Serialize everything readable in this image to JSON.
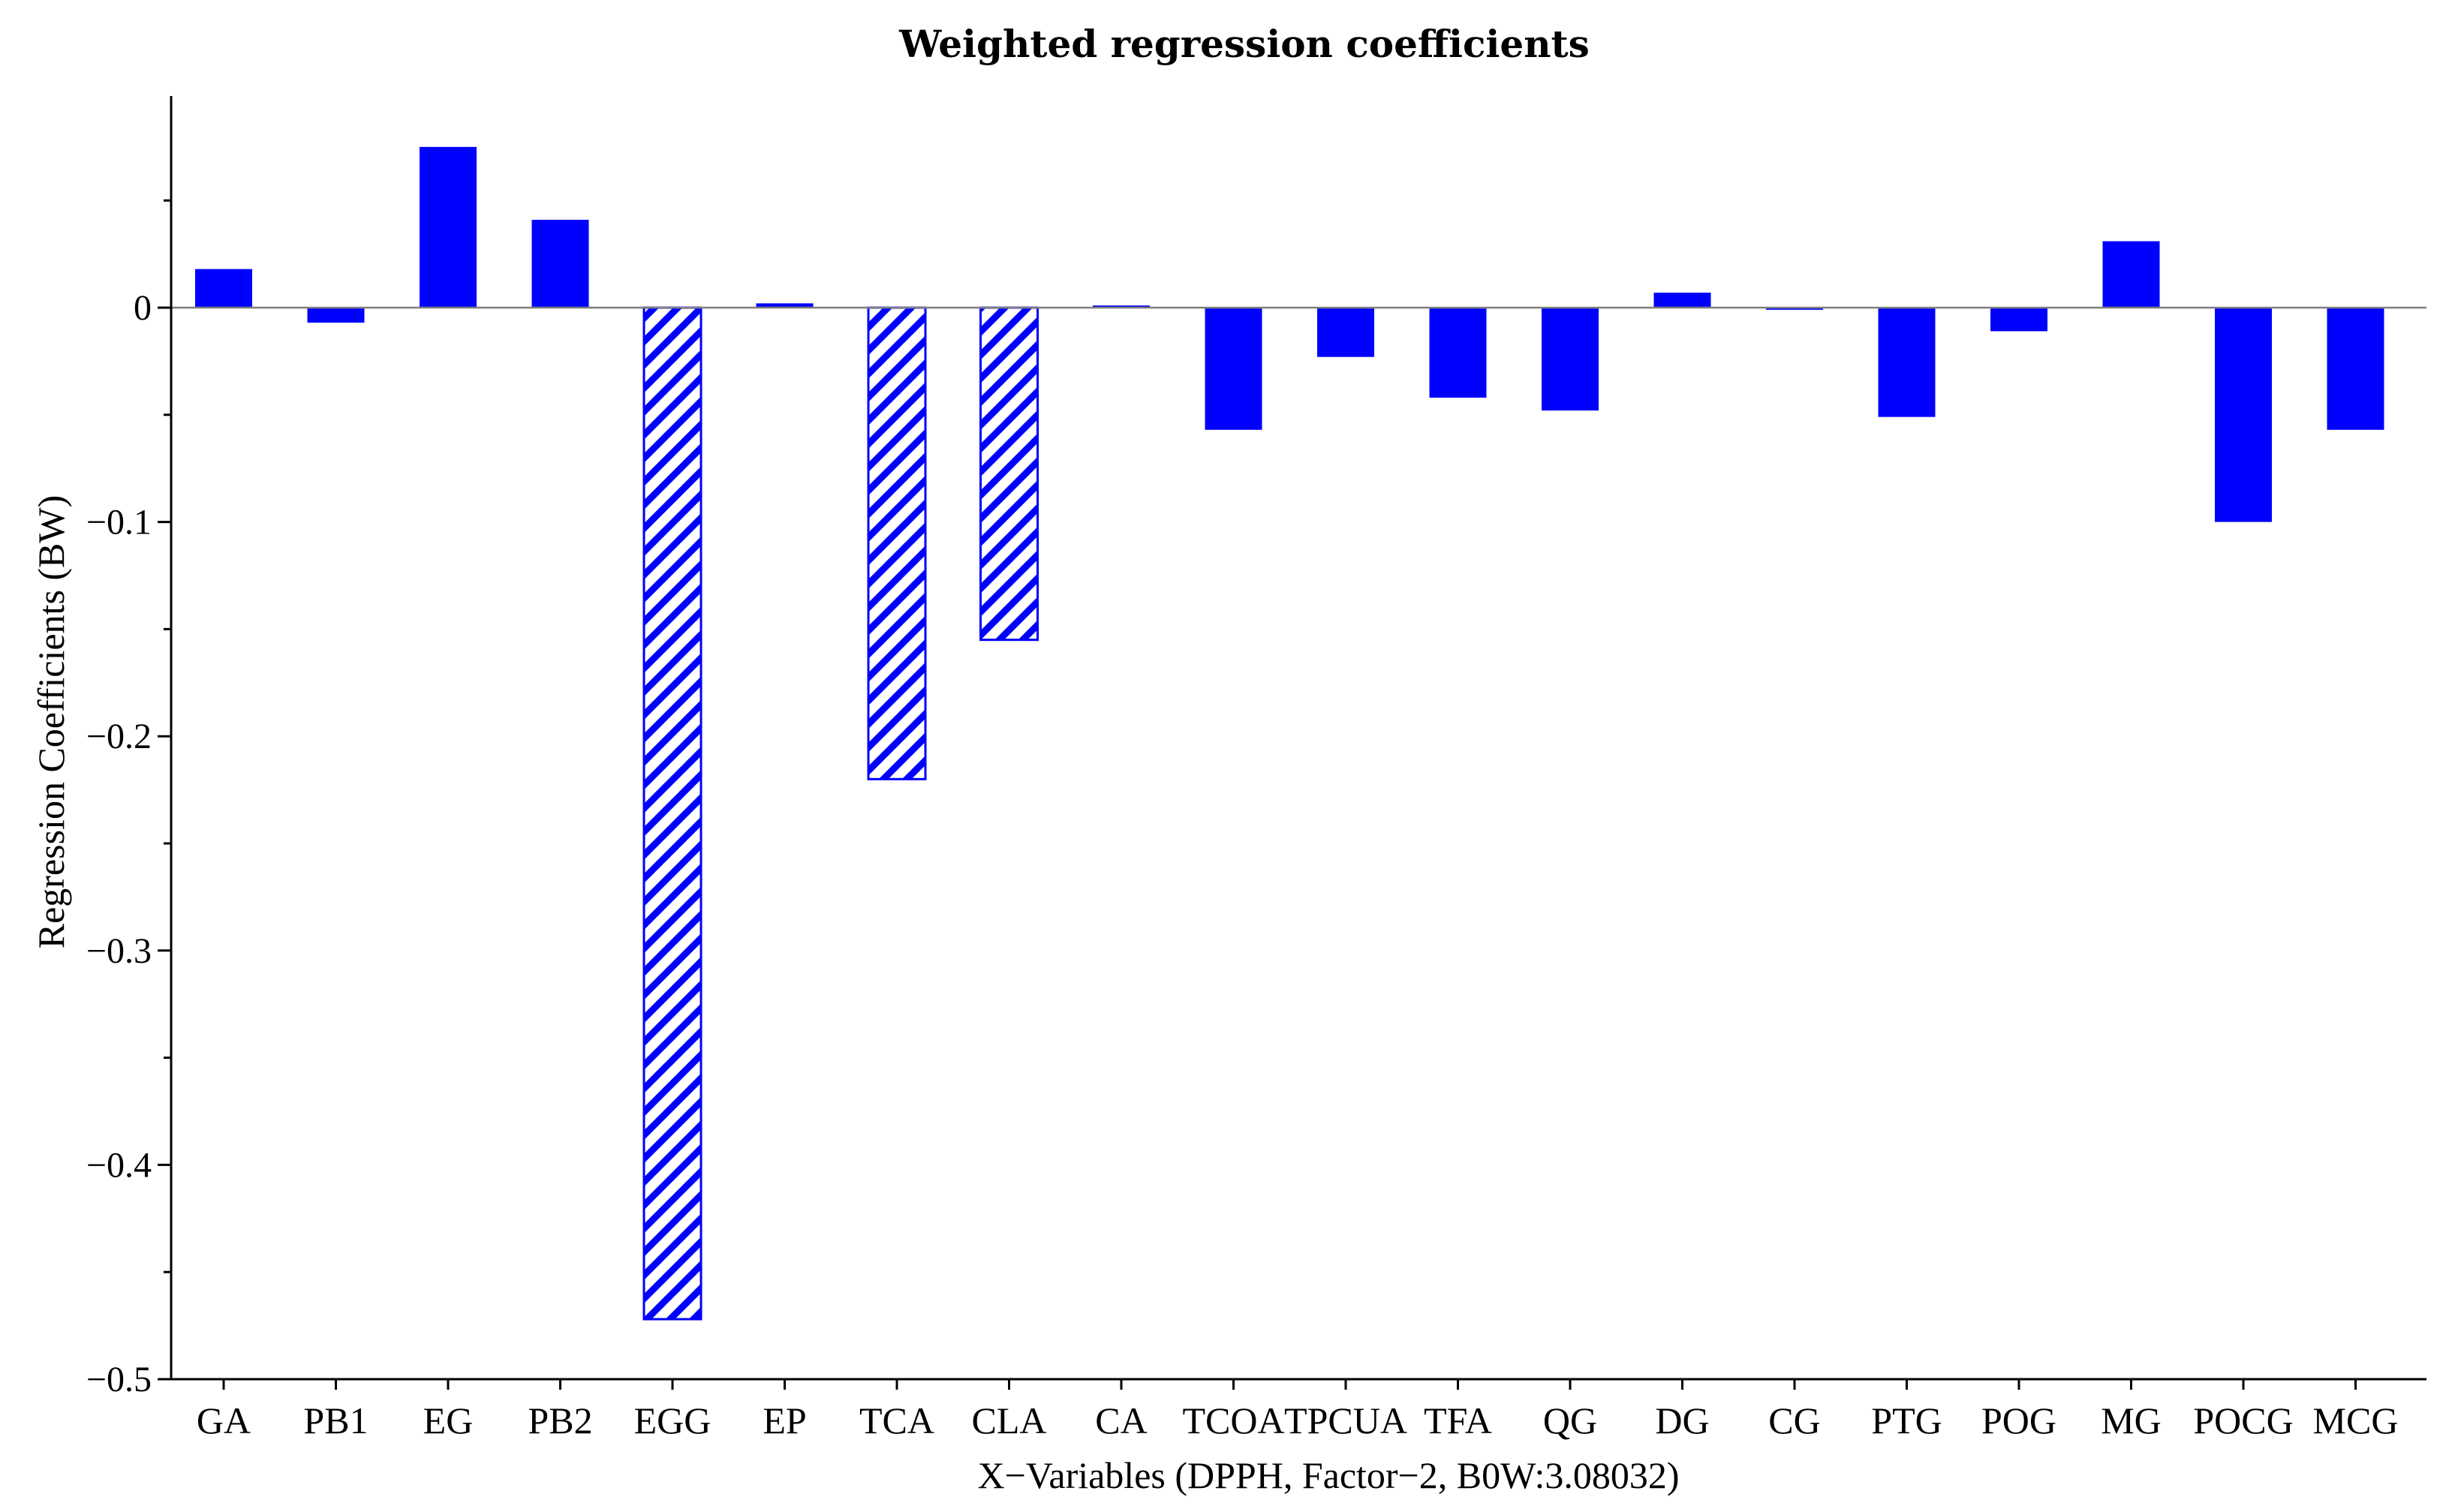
{
  "chart_data": {
    "type": "bar",
    "title": "Weighted regression coefficients",
    "xlabel": "X−Variables (DPPH, Factor−2, B0W:3.08032)",
    "ylabel": "Regression Coefficients (BW)",
    "ylim": [
      -0.5,
      0.1
    ],
    "yticks": [
      0,
      -0.1,
      -0.2,
      -0.3,
      -0.4,
      -0.5
    ],
    "ytick_labels": [
      "0",
      "−0.1",
      "−0.2",
      "−0.3",
      "−0.4",
      "−0.5"
    ],
    "categories": [
      "GA",
      "PB1",
      "EG",
      "PB2",
      "EGG",
      "EP",
      "TCA",
      "CLA",
      "CA",
      "TCOA",
      "TPCUA",
      "TFA",
      "QG",
      "DG",
      "CG",
      "PTG",
      "POG",
      "MG",
      "POCG",
      "MCG"
    ],
    "values": [
      0.018,
      -0.007,
      0.075,
      0.041,
      -0.472,
      0.002,
      -0.22,
      -0.155,
      0.001,
      -0.057,
      -0.023,
      -0.042,
      -0.048,
      0.007,
      -0.001,
      -0.051,
      -0.011,
      0.031,
      -0.1,
      -0.057
    ],
    "hatched": [
      false,
      false,
      false,
      false,
      true,
      false,
      true,
      true,
      false,
      false,
      false,
      false,
      false,
      false,
      false,
      false,
      false,
      false,
      false,
      false
    ],
    "bar_color": "#0000ff",
    "zero_line_color": "#7f7f7f",
    "grid": false
  }
}
